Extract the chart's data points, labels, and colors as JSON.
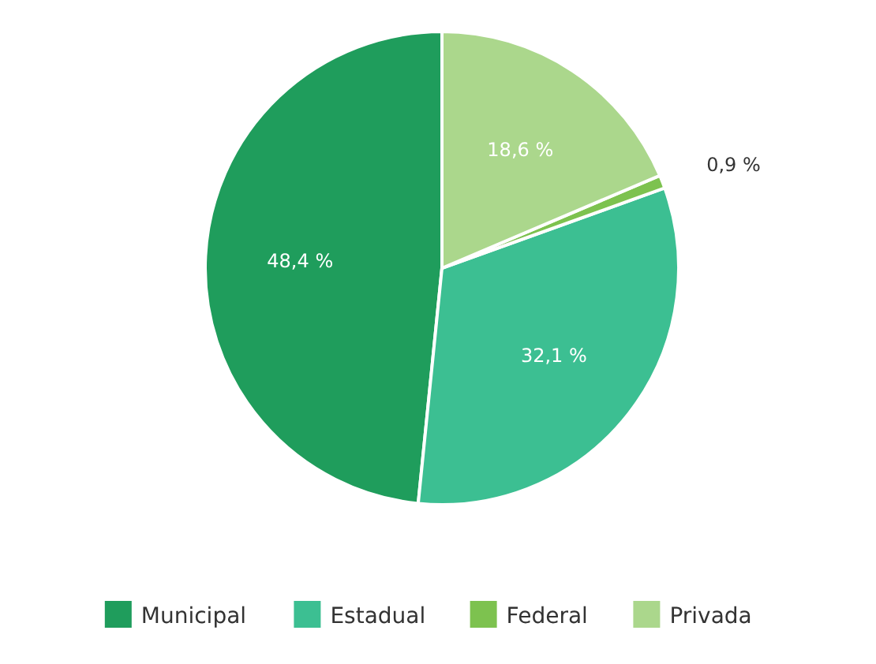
{
  "chart_data": {
    "type": "pie",
    "categories": [
      "Municipal",
      "Estadual",
      "Federal",
      "Privada"
    ],
    "values": [
      48.4,
      32.1,
      0.9,
      18.6
    ],
    "colors": [
      "#1f9d5c",
      "#3cbf92",
      "#7dc24f",
      "#abd78c"
    ],
    "value_labels": [
      "48,4 %",
      "32,1 %",
      "0,9 %",
      "18,6 %"
    ],
    "legend": "bottom"
  }
}
